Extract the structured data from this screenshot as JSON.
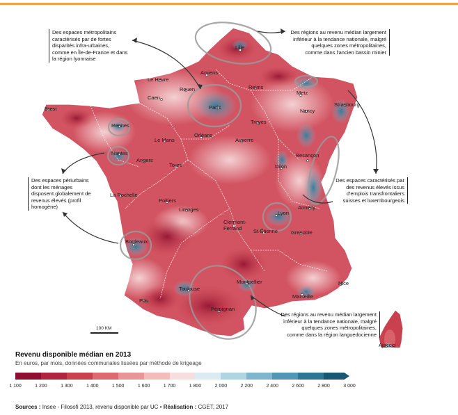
{
  "cities": [
    {
      "id": "lille",
      "label": "Lille"
    },
    {
      "id": "amiens",
      "label": "Amiens"
    },
    {
      "id": "le-havre",
      "label": "Le Havre"
    },
    {
      "id": "rouen",
      "label": "Rouen"
    },
    {
      "id": "caen",
      "label": "Caen"
    },
    {
      "id": "paris",
      "label": "Paris"
    },
    {
      "id": "reims",
      "label": "Reims"
    },
    {
      "id": "metz",
      "label": "Metz"
    },
    {
      "id": "nancy",
      "label": "Nancy"
    },
    {
      "id": "strasbourg",
      "label": "Strasbourg"
    },
    {
      "id": "brest",
      "label": "Brest"
    },
    {
      "id": "rennes",
      "label": "Rennes"
    },
    {
      "id": "le-mans",
      "label": "Le Mans"
    },
    {
      "id": "orleans",
      "label": "Orléans"
    },
    {
      "id": "troyes",
      "label": "Troyes"
    },
    {
      "id": "auxerre",
      "label": "Auxerre"
    },
    {
      "id": "nantes",
      "label": "Nantes"
    },
    {
      "id": "angers",
      "label": "Angers"
    },
    {
      "id": "tours",
      "label": "Tours"
    },
    {
      "id": "dijon",
      "label": "Dijon"
    },
    {
      "id": "besancon",
      "label": "Besançon"
    },
    {
      "id": "poitiers",
      "label": "Poitiers"
    },
    {
      "id": "la-rochelle",
      "label": "La Rochelle"
    },
    {
      "id": "limoges",
      "label": "Limoges"
    },
    {
      "id": "lyon",
      "label": "Lyon"
    },
    {
      "id": "annecy",
      "label": "Annecy"
    },
    {
      "id": "clermont-ferrand",
      "label": "Clermont-\nFerrand"
    },
    {
      "id": "saint-etienne",
      "label": "St-Étienne"
    },
    {
      "id": "grenoble",
      "label": "Grenoble"
    },
    {
      "id": "bordeaux",
      "label": "Bordeaux"
    },
    {
      "id": "toulouse",
      "label": "Toulouse"
    },
    {
      "id": "montpellier",
      "label": "Montpellier"
    },
    {
      "id": "nice",
      "label": "Nice"
    },
    {
      "id": "marseille",
      "label": "Marseille"
    },
    {
      "id": "pau",
      "label": "Pau"
    },
    {
      "id": "perpignan",
      "label": "Perpignan"
    },
    {
      "id": "ajaccio",
      "label": "Ajaccio"
    }
  ],
  "annotations": {
    "metropolitan": "Des espaces métropolitains\ncaractérisés par de fortes\ndisparités infra-urbaines,\ncomme en Île-de-France et dans\nla région lyonnaise",
    "north": "Des régions au revenu médian largement\ninférieur à la tendance nationale, malgré\nquelques zones métropolitaines,\ncomme dans l'ancien bassin minier",
    "periurban": "Des espaces périurbains\ndont les ménages\ndisposent globalement de\nrevenus élevés (profil\nhomogène)",
    "border": "Des espaces caractérisés par\ndes revenus élevés issus\nd'emplois transfrontaliers\nsuisses et luxembourgeois",
    "south": "Des régions au revenu médian largement\ninférieur à la tendance nationale, malgré\nquelques zones métropolitaines,\ncomme dans la région languedocienne"
  },
  "scale_bar": "100 KM",
  "legend": {
    "title": "Revenu disponible médian en 2013",
    "subtitle": "En euros, par mois, données communales lissées par méthode de krigeage",
    "ticks": [
      "1 100",
      "1 200",
      "1 300",
      "1 400",
      "1 500",
      "1 600",
      "1 700",
      "1 800",
      "2 000",
      "2 200",
      "2 400",
      "2 600",
      "2 800",
      "3 000"
    ],
    "colors": [
      "#8e0f2f",
      "#b0243f",
      "#c9414f",
      "#dd6a70",
      "#e99496",
      "#f2bcbc",
      "#f7dede",
      "#dcebf1",
      "#b1d4e1",
      "#7fb6cd",
      "#4f97b5",
      "#2e7696",
      "#175874",
      "#0d3d55"
    ]
  },
  "sources": {
    "label": "Sources :",
    "text": " Insee - Filosofi 2013, revenu disponible par UC • ",
    "credit_label": "Réalisation :",
    "credit": " CGET, 2017"
  }
}
